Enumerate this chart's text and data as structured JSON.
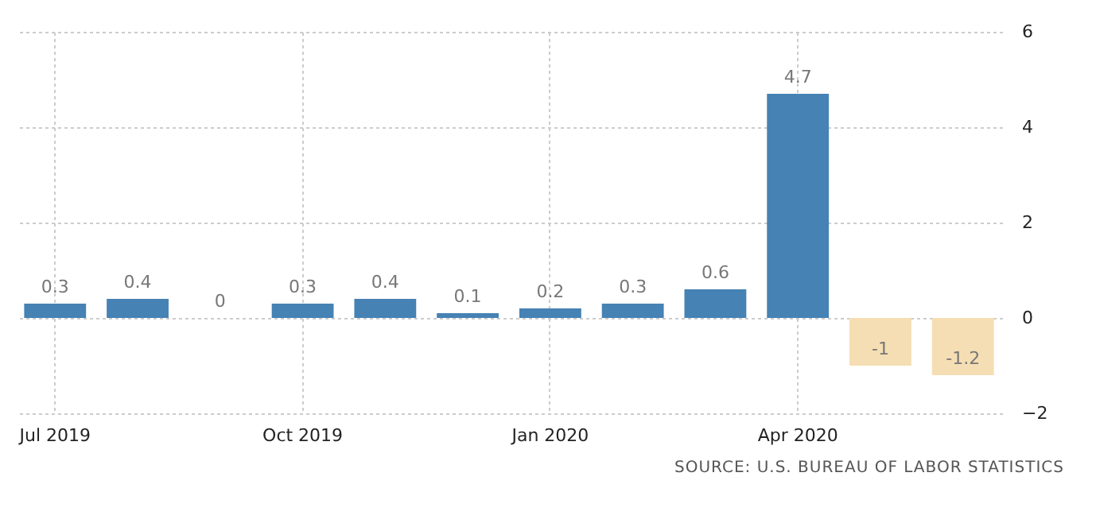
{
  "chart_data": {
    "type": "bar",
    "categories": [
      "Jul 2019",
      null,
      null,
      "Oct 2019",
      null,
      null,
      "Jan 2020",
      null,
      null,
      "Apr 2020",
      null,
      null
    ],
    "values": [
      0.3,
      0.4,
      0,
      0.3,
      0.4,
      0.1,
      0.2,
      0.3,
      0.6,
      4.7,
      -1,
      -1.2
    ],
    "colors": [
      "#4682b4",
      "#4682b4",
      "#4682b4",
      "#4682b4",
      "#4682b4",
      "#4682b4",
      "#4682b4",
      "#4682b4",
      "#4682b4",
      "#4682b4",
      "#f5deb3",
      "#f5deb3"
    ],
    "ylim": [
      -2,
      6
    ],
    "yticks": [
      -2,
      0,
      2,
      4,
      6
    ],
    "grid": true,
    "data_labels": true,
    "annotations": [
      "SOURCE: U.S. BUREAU OF LABOR STATISTICS"
    ]
  }
}
